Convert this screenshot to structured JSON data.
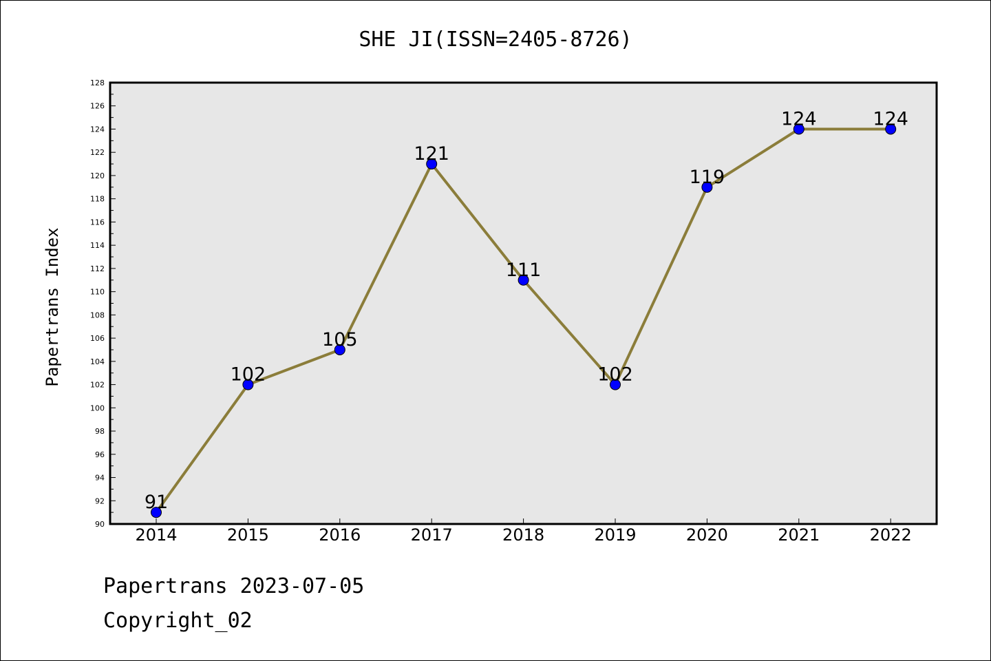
{
  "chart_data": {
    "type": "line",
    "title": "SHE JI(ISSN=2405-8726)",
    "xlabel": "",
    "ylabel": "Papertrans Index",
    "categories": [
      "2014",
      "2015",
      "2016",
      "2017",
      "2018",
      "2019",
      "2020",
      "2021",
      "2022"
    ],
    "values": [
      91,
      102,
      105,
      121,
      111,
      102,
      119,
      124,
      124
    ],
    "ylim": [
      90,
      128
    ],
    "yticks": [
      "90",
      "92",
      "94",
      "96",
      "98",
      "100",
      "102",
      "104",
      "106",
      "108",
      "110",
      "112",
      "114",
      "116",
      "118",
      "120",
      "122",
      "124",
      "126",
      "128"
    ],
    "grid": false,
    "legend": "none",
    "data_labels": true,
    "colors": {
      "line": "#8b7d3a",
      "marker": "#0000ff",
      "plot_background": "#e7e7e7",
      "frame": "#000000"
    }
  },
  "footer": {
    "line1": "Papertrans 2023-07-05",
    "line2": "Copyright_02"
  }
}
